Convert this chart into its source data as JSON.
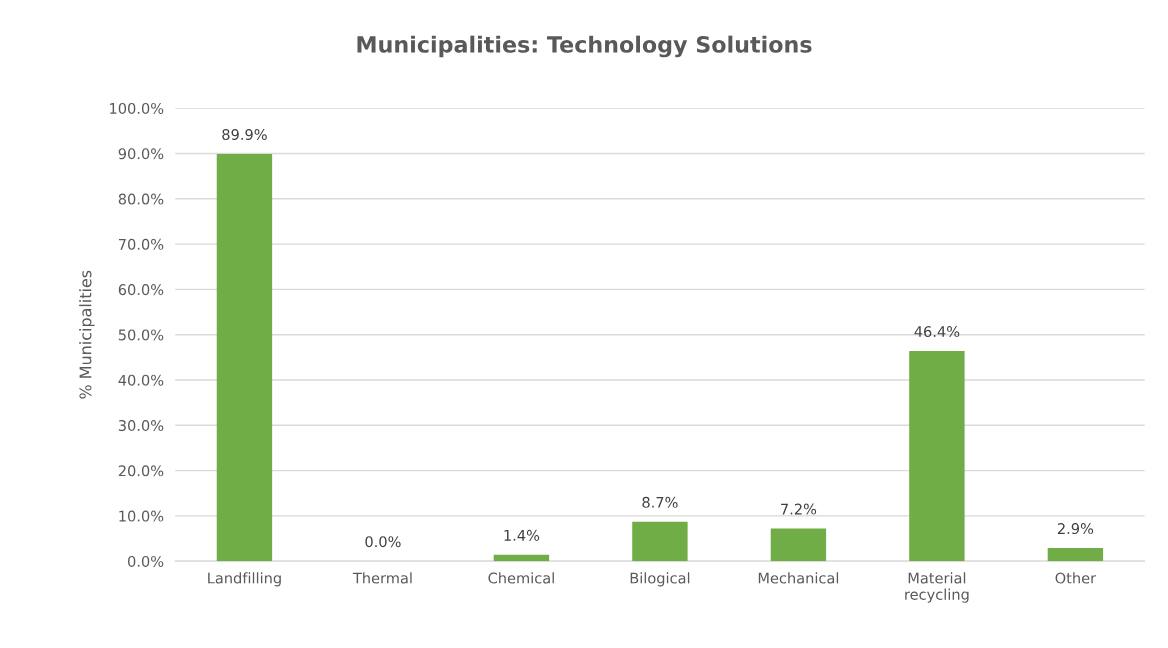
{
  "chart_data": {
    "type": "bar",
    "title": "Municipalities: Technology Solutions",
    "ylabel": "% Municipalities",
    "categories": [
      "Landfilling",
      "Thermal",
      "Chemical",
      "Bilogical",
      "Mechanical",
      "Material\nrecycling",
      "Other"
    ],
    "values": [
      89.9,
      0.0,
      1.4,
      8.7,
      7.2,
      46.4,
      2.9
    ],
    "value_labels": [
      "89.9%",
      "0.0%",
      "1.4%",
      "8.7%",
      "7.2%",
      "46.4%",
      "2.9%"
    ],
    "color": "#70ad47",
    "ylim": [
      0,
      100
    ],
    "yticks": [
      {
        "value": 0,
        "label": "0.0%"
      },
      {
        "value": 10,
        "label": "10.0%"
      },
      {
        "value": 20,
        "label": "20.0%"
      },
      {
        "value": 30,
        "label": "30.0%"
      },
      {
        "value": 40,
        "label": "40.0%"
      },
      {
        "value": 50,
        "label": "50.0%"
      },
      {
        "value": 60,
        "label": "60.0%"
      },
      {
        "value": 70,
        "label": "70.0%"
      },
      {
        "value": 80,
        "label": "80.0%"
      },
      {
        "value": 90,
        "label": "90.0%"
      },
      {
        "value": 100,
        "label": "100.0%"
      }
    ],
    "grid": "y"
  }
}
